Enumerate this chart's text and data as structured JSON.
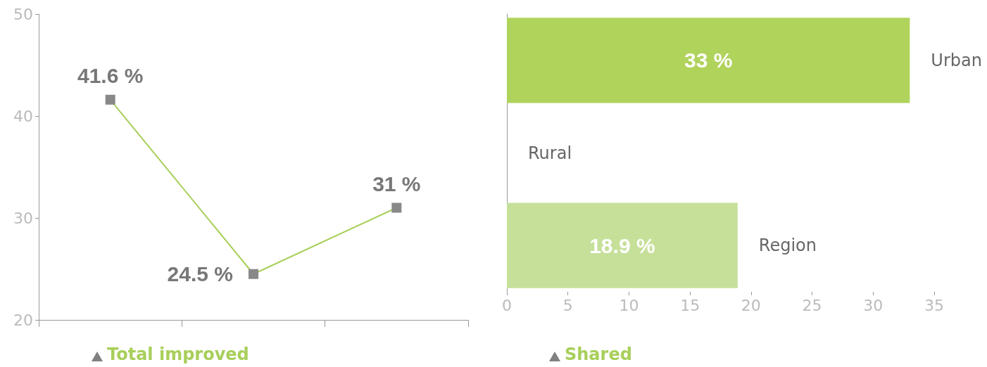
{
  "chart_data": [
    {
      "type": "line",
      "title": "Total improved",
      "categories": [
        null,
        null,
        null
      ],
      "values": [
        41.6,
        24.5,
        31
      ],
      "value_labels": [
        "41.6 %",
        "24.5 %",
        "31 %"
      ],
      "color": "#a8cf5a",
      "ylim": [
        20,
        50
      ],
      "yticks": [
        20,
        30,
        40,
        50
      ],
      "marker": "square",
      "grid": false
    },
    {
      "type": "bar",
      "title": "Shared",
      "orientation": "horizontal",
      "categories": [
        "Urban",
        "Rural",
        "Region"
      ],
      "values": [
        33,
        0,
        18.9
      ],
      "colors": [
        "#b0d35c",
        "#b0d35c",
        "#c6e09a"
      ],
      "value_labels": [
        "33 %",
        null,
        "18.9 %"
      ],
      "xlim": [
        0,
        35
      ],
      "xticks": [
        0,
        5,
        10,
        15,
        20,
        25,
        30,
        35
      ],
      "grid": false
    }
  ]
}
